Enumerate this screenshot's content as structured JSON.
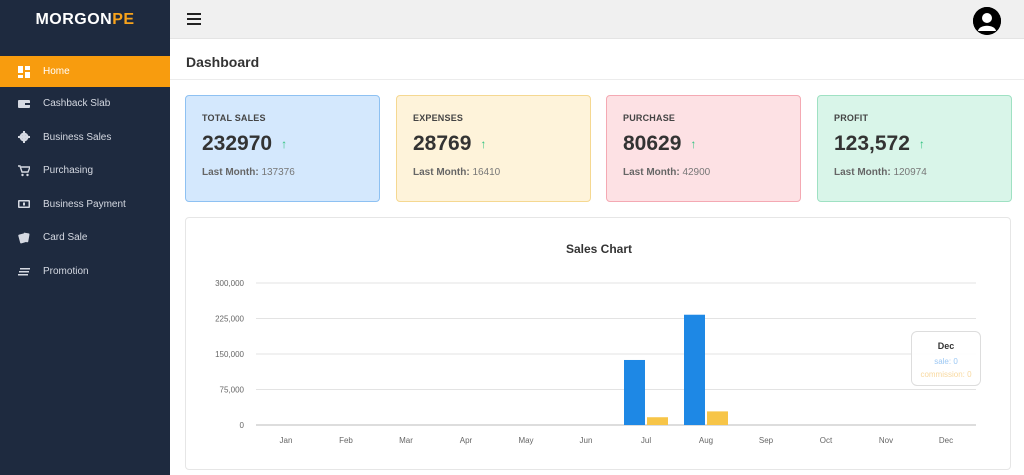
{
  "brand": {
    "part1": "MORGON",
    "part2": "PE"
  },
  "sidebar": {
    "items": [
      {
        "label": "Home",
        "icon": "dashboard-icon",
        "active": true
      },
      {
        "label": "Cashback Slab",
        "icon": "wallet-icon",
        "active": false
      },
      {
        "label": "Business Sales",
        "icon": "gear-icon",
        "active": false
      },
      {
        "label": "Purchasing",
        "icon": "cart-icon",
        "active": false
      },
      {
        "label": "Business Payment",
        "icon": "money-icon",
        "active": false
      },
      {
        "label": "Card Sale",
        "icon": "cards-icon",
        "active": false
      },
      {
        "label": "Promotion",
        "icon": "list-icon",
        "active": false
      }
    ]
  },
  "header": {
    "title": "Dashboard"
  },
  "cards": {
    "sales": {
      "label": "TOTAL SALES",
      "value": "232970",
      "arrow": "↑",
      "last_label": "Last Month:",
      "last_value": "137376"
    },
    "expenses": {
      "label": "EXPENSES",
      "value": "28769",
      "arrow": "↑",
      "last_label": "Last Month:",
      "last_value": "16410"
    },
    "purchase": {
      "label": "PURCHASE",
      "value": "80629",
      "arrow": "↑",
      "last_label": "Last Month:",
      "last_value": "42900"
    },
    "profit": {
      "label": "PROFIT",
      "value": "123,572",
      "arrow": "↑",
      "last_label": "Last Month:",
      "last_value": "120974"
    }
  },
  "tooltip": {
    "title": "Dec",
    "sale": "sale: 0",
    "commission": "commission: 0"
  },
  "colors": {
    "sidebar": "#1e2a3f",
    "accent": "#f89c0e",
    "sale_bar": "#1e88e5",
    "commission_bar": "#f7c548"
  },
  "chart_data": {
    "type": "bar",
    "title": "Sales Chart",
    "categories": [
      "Jan",
      "Feb",
      "Mar",
      "Apr",
      "May",
      "Jun",
      "Jul",
      "Aug",
      "Sep",
      "Oct",
      "Nov",
      "Dec"
    ],
    "series": [
      {
        "name": "sale",
        "values": [
          0,
          0,
          0,
          0,
          0,
          0,
          137376,
          232970,
          0,
          0,
          0,
          0
        ],
        "color": "#1e88e5"
      },
      {
        "name": "commission",
        "values": [
          0,
          0,
          0,
          0,
          0,
          0,
          16410,
          28769,
          0,
          0,
          0,
          0
        ],
        "color": "#f7c548"
      }
    ],
    "ylim": [
      0,
      300000
    ],
    "yticks": [
      0,
      75000,
      150000,
      225000,
      300000
    ],
    "ytick_labels": [
      "0",
      "75,000",
      "150,000",
      "225,000",
      "300,000"
    ],
    "grid": true,
    "legend": "none"
  }
}
